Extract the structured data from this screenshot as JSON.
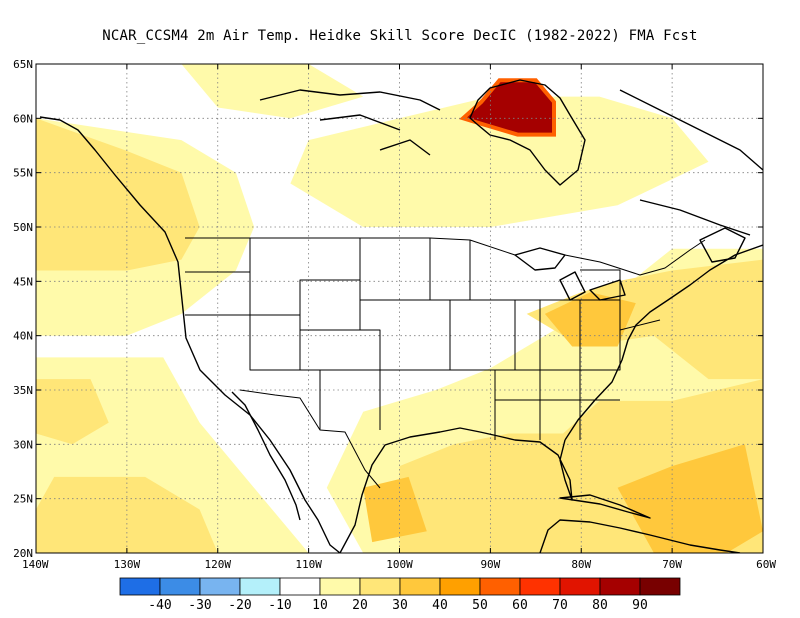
{
  "title": "NCAR_CCSM4  2m Air Temp. Heidke Skill Score DecIC (1982-2022) FMA Fcst",
  "map": {
    "lon_range": [
      -140,
      -60
    ],
    "lat_range": [
      20,
      65
    ],
    "lat_ticks": [
      {
        "value": 65,
        "label": "65N"
      },
      {
        "value": 60,
        "label": "60N"
      },
      {
        "value": 55,
        "label": "55N"
      },
      {
        "value": 50,
        "label": "50N"
      },
      {
        "value": 45,
        "label": "45N"
      },
      {
        "value": 40,
        "label": "40N"
      },
      {
        "value": 35,
        "label": "35N"
      },
      {
        "value": 30,
        "label": "30N"
      },
      {
        "value": 25,
        "label": "25N"
      },
      {
        "value": 20,
        "label": "20N"
      }
    ],
    "lon_ticks": [
      {
        "value": -140,
        "label": "140W"
      },
      {
        "value": -130,
        "label": "130W"
      },
      {
        "value": -120,
        "label": "120W"
      },
      {
        "value": -110,
        "label": "110W"
      },
      {
        "value": -100,
        "label": "100W"
      },
      {
        "value": -90,
        "label": "90W"
      },
      {
        "value": -80,
        "label": "80W"
      },
      {
        "value": -70,
        "label": "70W"
      },
      {
        "value": -60,
        "label": "60W"
      }
    ],
    "gridlines": true,
    "skill_regions": [
      {
        "level": 20,
        "pts": [
          [
            -140,
            60
          ],
          [
            -124,
            58
          ],
          [
            -118,
            55
          ],
          [
            -116,
            50
          ],
          [
            -118,
            46
          ],
          [
            -124,
            42
          ],
          [
            -130,
            40
          ],
          [
            -140,
            40
          ]
        ]
      },
      {
        "level": 30,
        "pts": [
          [
            -140,
            60
          ],
          [
            -130,
            57
          ],
          [
            -124,
            55
          ],
          [
            -122,
            50
          ],
          [
            -124,
            47
          ],
          [
            -130,
            46
          ],
          [
            -140,
            46
          ]
        ]
      },
      {
        "level": 20,
        "pts": [
          [
            -140,
            38
          ],
          [
            -126,
            38
          ],
          [
            -122,
            32
          ],
          [
            -118,
            28
          ],
          [
            -112,
            22
          ],
          [
            -110,
            20
          ],
          [
            -140,
            20
          ]
        ]
      },
      {
        "level": 30,
        "pts": [
          [
            -140,
            36
          ],
          [
            -134,
            36
          ],
          [
            -132,
            32
          ],
          [
            -136,
            30
          ],
          [
            -140,
            31
          ]
        ]
      },
      {
        "level": 30,
        "pts": [
          [
            -138,
            27
          ],
          [
            -128,
            27
          ],
          [
            -122,
            24
          ],
          [
            -120,
            20
          ],
          [
            -140,
            20
          ],
          [
            -140,
            24
          ]
        ]
      },
      {
        "level": 20,
        "pts": [
          [
            -104,
            33
          ],
          [
            -96,
            35
          ],
          [
            -90,
            37
          ],
          [
            -84,
            40
          ],
          [
            -76,
            44
          ],
          [
            -70,
            48
          ],
          [
            -60,
            48
          ],
          [
            -60,
            20
          ],
          [
            -104,
            20
          ],
          [
            -108,
            26
          ]
        ]
      },
      {
        "level": 30,
        "pts": [
          [
            -86,
            42
          ],
          [
            -80,
            44
          ],
          [
            -76,
            45
          ],
          [
            -70,
            46
          ],
          [
            -60,
            47
          ],
          [
            -60,
            36
          ],
          [
            -66,
            36
          ],
          [
            -72,
            40
          ],
          [
            -80,
            39
          ]
        ]
      },
      {
        "level": 30,
        "pts": [
          [
            -100,
            28
          ],
          [
            -94,
            30
          ],
          [
            -88,
            31
          ],
          [
            -82,
            31
          ],
          [
            -78,
            34
          ],
          [
            -70,
            34
          ],
          [
            -60,
            36
          ],
          [
            -60,
            20
          ],
          [
            -100,
            20
          ]
        ]
      },
      {
        "level": 40,
        "pts": [
          [
            -84,
            42
          ],
          [
            -79,
            44
          ],
          [
            -74,
            43
          ],
          [
            -76,
            39
          ],
          [
            -81,
            39
          ]
        ]
      },
      {
        "level": 40,
        "pts": [
          [
            -76,
            26
          ],
          [
            -70,
            28
          ],
          [
            -62,
            30
          ],
          [
            -60,
            22
          ],
          [
            -64,
            20
          ],
          [
            -72,
            20
          ]
        ]
      },
      {
        "level": 40,
        "pts": [
          [
            -104,
            26
          ],
          [
            -99,
            27
          ],
          [
            -97,
            22
          ],
          [
            -103,
            21
          ]
        ]
      },
      {
        "level": 20,
        "pts": [
          [
            -110,
            58
          ],
          [
            -100,
            60
          ],
          [
            -90,
            62
          ],
          [
            -78,
            62
          ],
          [
            -70,
            60
          ],
          [
            -66,
            56
          ],
          [
            -76,
            52
          ],
          [
            -90,
            50
          ],
          [
            -104,
            50
          ],
          [
            -112,
            54
          ]
        ]
      },
      {
        "level": 20,
        "pts": [
          [
            -124,
            65
          ],
          [
            -110,
            65
          ],
          [
            -104,
            62
          ],
          [
            -112,
            60
          ],
          [
            -120,
            61
          ]
        ]
      },
      {
        "level": 90,
        "pts": [
          [
            -91,
            61.5
          ],
          [
            -89,
            63.5
          ],
          [
            -85,
            63.5
          ],
          [
            -84,
            62.5
          ],
          [
            -83,
            61.5
          ],
          [
            -83,
            58.5
          ],
          [
            -87,
            58.5
          ],
          [
            -91,
            59.5
          ],
          [
            -93,
            60
          ]
        ]
      }
    ]
  },
  "colorbar": {
    "colors": [
      "#1e6ee6",
      "#3c8ce6",
      "#78b4f0",
      "#b4f0fa",
      "#ffffff",
      "#fffaaa",
      "#ffe678",
      "#ffc83c",
      "#ffa000",
      "#ff6000",
      "#ff3200",
      "#e11400",
      "#a50000",
      "#780000"
    ],
    "labels": [
      "-40",
      "-30",
      "-20",
      "-10",
      "10",
      "20",
      "30",
      "40",
      "50",
      "60",
      "70",
      "80",
      "90"
    ]
  }
}
